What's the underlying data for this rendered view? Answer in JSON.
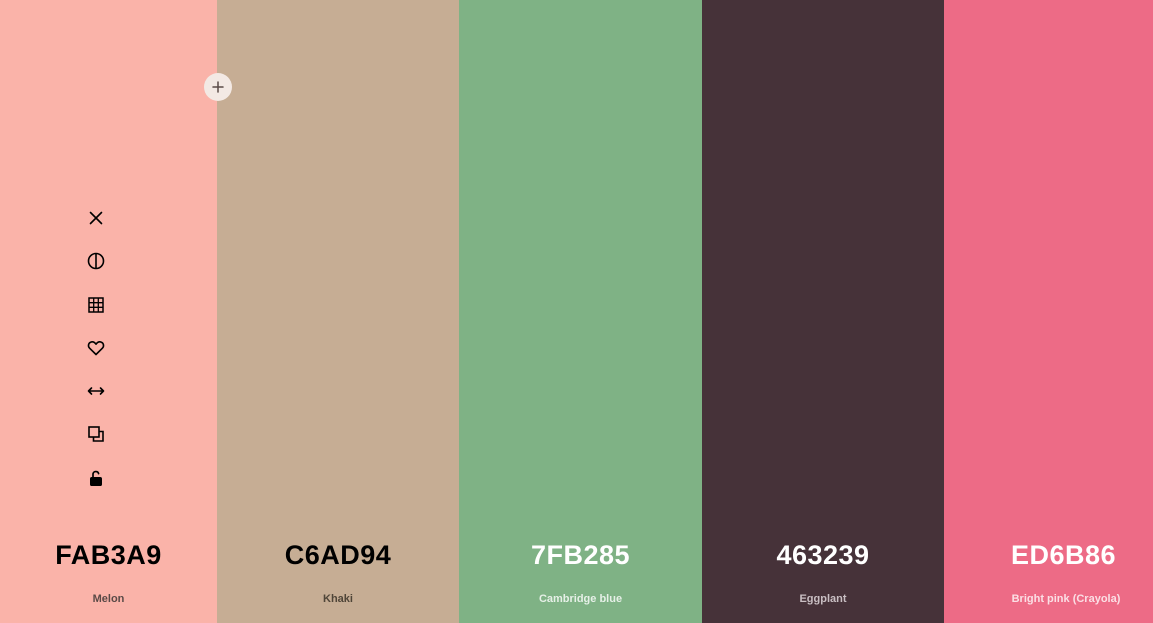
{
  "palette": {
    "colors": [
      {
        "hex": "FAB3A9",
        "name": "Melon",
        "bg": "#FAB3A9",
        "hex_color": "#000000",
        "name_color": "#5a4a47"
      },
      {
        "hex": "C6AD94",
        "name": "Khaki",
        "bg": "#C6AD94",
        "hex_color": "#000000",
        "name_color": "#4f4538"
      },
      {
        "hex": "7FB285",
        "name": "Cambridge blue",
        "bg": "#7FB285",
        "hex_color": "#ffffff",
        "name_color": "#e6f0e7"
      },
      {
        "hex": "463239",
        "name": "Eggplant",
        "bg": "#463239",
        "hex_color": "#ffffff",
        "name_color": "#c9bfc3"
      },
      {
        "hex": "ED6B86",
        "name": "Bright pink (Crayola)",
        "bg": "#ED6B86",
        "hex_color": "#ffffff",
        "name_color": "#fbdfe5"
      }
    ]
  },
  "toolbar": {
    "icons": [
      "close-icon",
      "contrast-icon",
      "shades-grid-icon",
      "heart-icon",
      "drag-arrows-icon",
      "copy-icon",
      "unlock-icon"
    ]
  },
  "add_button": {
    "icon": "plus-icon"
  }
}
